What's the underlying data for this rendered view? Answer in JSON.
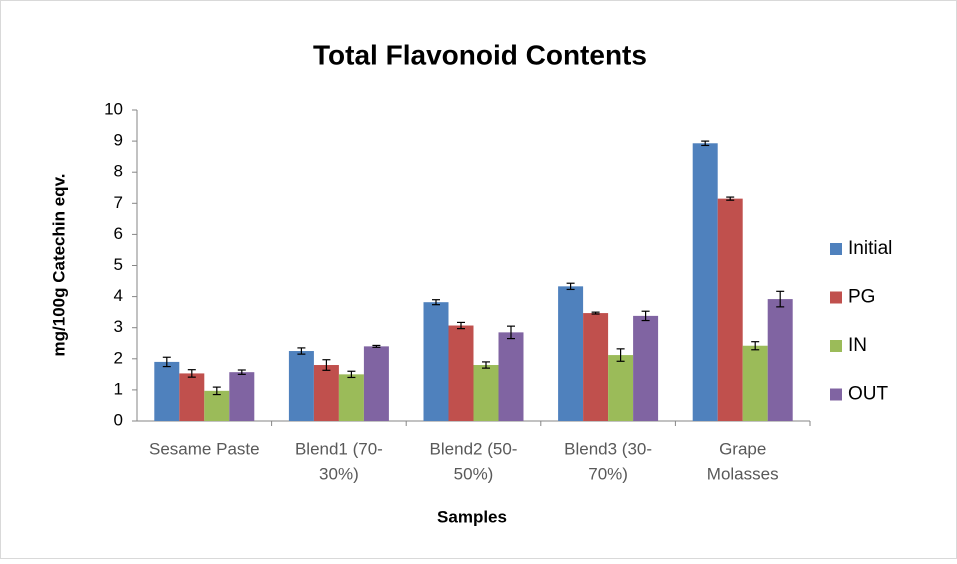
{
  "chart_data": {
    "type": "bar",
    "title": "Total Flavonoid Contents",
    "x_label": "Samples",
    "y_label": "mg/100g Catechin eqv.",
    "categories": [
      [
        "Sesame Paste"
      ],
      [
        "Blend1 (70-",
        "30%)"
      ],
      [
        "Blend2 (50-",
        "50%)"
      ],
      [
        "Blend3 (30-",
        "70%)"
      ],
      [
        "Grape",
        "Molasses"
      ]
    ],
    "series": [
      {
        "name": "Initial",
        "color": "#4f81bd",
        "values": [
          1.9,
          2.25,
          3.82,
          4.33,
          8.93
        ],
        "errors": [
          0.15,
          0.1,
          0.08,
          0.1,
          0.07
        ]
      },
      {
        "name": "PG",
        "color": "#c0504d",
        "values": [
          1.53,
          1.8,
          3.07,
          3.47,
          7.15
        ],
        "errors": [
          0.12,
          0.17,
          0.1,
          0.03,
          0.05
        ]
      },
      {
        "name": "IN",
        "color": "#9bbb59",
        "values": [
          0.97,
          1.5,
          1.8,
          2.12,
          2.42
        ],
        "errors": [
          0.12,
          0.1,
          0.1,
          0.2,
          0.13
        ]
      },
      {
        "name": "OUT",
        "color": "#8064a2",
        "values": [
          1.57,
          2.4,
          2.85,
          3.38,
          3.92
        ],
        "errors": [
          0.07,
          0.03,
          0.2,
          0.15,
          0.25
        ]
      }
    ],
    "ylim": [
      0,
      10
    ],
    "yticks": [
      0,
      1,
      2,
      3,
      4,
      5,
      6,
      7,
      8,
      9,
      10
    ],
    "legend": "right"
  }
}
